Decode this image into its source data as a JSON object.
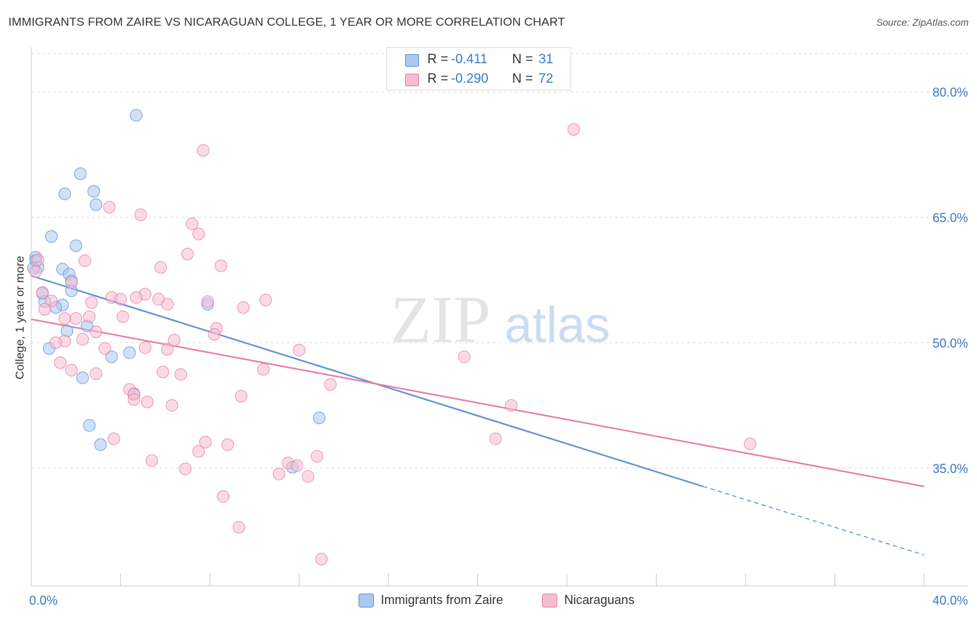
{
  "title": "IMMIGRANTS FROM ZAIRE VS NICARAGUAN COLLEGE, 1 YEAR OR MORE CORRELATION CHART",
  "source": "Source: ZipAtlas.com",
  "watermark": {
    "zip": "ZIP",
    "atlas": "atlas"
  },
  "legend": {
    "rows": [
      {
        "r_label": "R =",
        "r_value": "-0.411",
        "n_label": "N =",
        "n_value": "31",
        "color": "#aac8f0",
        "stroke": "#5b8fd6"
      },
      {
        "r_label": "R =",
        "r_value": "-0.290",
        "n_label": "N =",
        "n_value": "72",
        "color": "#f7bcd0",
        "stroke": "#e47fa1"
      }
    ]
  },
  "bottom_legend": [
    {
      "label": "Immigrants from Zaire",
      "color": "#aac8f0",
      "stroke": "#5b8fd6"
    },
    {
      "label": "Nicaraguans",
      "color": "#f7bcd0",
      "stroke": "#e47fa1"
    }
  ],
  "chart_data": {
    "type": "scatter",
    "title": "IMMIGRANTS FROM ZAIRE VS NICARAGUAN COLLEGE, 1 YEAR OR MORE CORRELATION CHART",
    "xlabel": "",
    "ylabel": "College, 1 year or more",
    "xlim": [
      0,
      40
    ],
    "ylim": [
      20.9,
      85.0
    ],
    "x_tick_labels": [
      "0.0%",
      "40.0%"
    ],
    "y_ticks": [
      35,
      50,
      65,
      80
    ],
    "y_tick_labels": [
      "35.0%",
      "50.0%",
      "65.0%",
      "80.0%"
    ],
    "grid": true,
    "legend_position": "top-center",
    "series": [
      {
        "name": "Immigrants from Zaire",
        "color": "#5b8fd6",
        "fill": "#aac8f0",
        "points": [
          [
            4.7,
            77.2
          ],
          [
            2.2,
            70.2
          ],
          [
            2.8,
            68.1
          ],
          [
            1.5,
            67.8
          ],
          [
            2.9,
            66.5
          ],
          [
            0.9,
            62.7
          ],
          [
            2.0,
            61.6
          ],
          [
            0.2,
            60.2
          ],
          [
            0.2,
            59.8
          ],
          [
            0.3,
            59.0
          ],
          [
            1.4,
            58.8
          ],
          [
            1.7,
            58.2
          ],
          [
            1.8,
            57.4
          ],
          [
            1.8,
            56.2
          ],
          [
            0.5,
            55.9
          ],
          [
            0.6,
            54.9
          ],
          [
            1.4,
            54.5
          ],
          [
            1.1,
            54.2
          ],
          [
            7.9,
            54.6
          ],
          [
            1.6,
            51.4
          ],
          [
            2.5,
            52.0
          ],
          [
            0.8,
            49.3
          ],
          [
            3.6,
            48.3
          ],
          [
            4.4,
            48.8
          ],
          [
            2.3,
            45.8
          ],
          [
            4.6,
            43.9
          ],
          [
            2.6,
            40.1
          ],
          [
            3.1,
            37.8
          ],
          [
            12.9,
            41.0
          ],
          [
            11.7,
            35.1
          ],
          [
            0.1,
            58.9
          ]
        ],
        "trend": {
          "x0": 0,
          "y0": 58.0,
          "x1": 30.1,
          "y1": 32.8,
          "dash_to_x": 40,
          "dash_to_y": 24.6
        }
      },
      {
        "name": "Nicaraguans",
        "color": "#e47fa1",
        "fill": "#f7bcd0",
        "points": [
          [
            24.3,
            75.5
          ],
          [
            7.7,
            73.0
          ],
          [
            3.5,
            66.2
          ],
          [
            4.9,
            65.3
          ],
          [
            7.2,
            64.2
          ],
          [
            7.5,
            63.0
          ],
          [
            7.0,
            60.6
          ],
          [
            2.4,
            59.8
          ],
          [
            8.5,
            59.2
          ],
          [
            5.8,
            59.0
          ],
          [
            0.3,
            59.9
          ],
          [
            0.2,
            58.5
          ],
          [
            1.8,
            57.2
          ],
          [
            3.6,
            55.4
          ],
          [
            5.1,
            55.8
          ],
          [
            4.0,
            55.2
          ],
          [
            4.7,
            55.4
          ],
          [
            5.7,
            55.2
          ],
          [
            6.1,
            54.6
          ],
          [
            2.7,
            54.8
          ],
          [
            7.9,
            54.9
          ],
          [
            9.5,
            54.2
          ],
          [
            10.5,
            55.1
          ],
          [
            0.9,
            55.0
          ],
          [
            0.6,
            54.0
          ],
          [
            2.6,
            53.1
          ],
          [
            1.5,
            52.9
          ],
          [
            4.1,
            53.1
          ],
          [
            8.3,
            51.7
          ],
          [
            2.0,
            52.9
          ],
          [
            8.2,
            51.0
          ],
          [
            2.9,
            51.3
          ],
          [
            1.5,
            50.2
          ],
          [
            2.3,
            50.4
          ],
          [
            6.4,
            50.3
          ],
          [
            1.1,
            50.0
          ],
          [
            3.3,
            49.3
          ],
          [
            5.1,
            49.4
          ],
          [
            6.1,
            49.2
          ],
          [
            12.0,
            49.1
          ],
          [
            1.3,
            47.6
          ],
          [
            1.8,
            46.7
          ],
          [
            2.9,
            46.3
          ],
          [
            5.9,
            46.5
          ],
          [
            6.7,
            46.2
          ],
          [
            10.4,
            46.8
          ],
          [
            19.4,
            48.3
          ],
          [
            13.4,
            45.0
          ],
          [
            4.4,
            44.4
          ],
          [
            4.6,
            43.8
          ],
          [
            4.6,
            43.2
          ],
          [
            5.2,
            42.9
          ],
          [
            6.3,
            42.5
          ],
          [
            9.4,
            43.6
          ],
          [
            21.5,
            42.5
          ],
          [
            3.7,
            38.5
          ],
          [
            7.8,
            38.1
          ],
          [
            8.8,
            37.8
          ],
          [
            7.5,
            37.0
          ],
          [
            20.8,
            38.5
          ],
          [
            32.2,
            37.9
          ],
          [
            5.4,
            35.9
          ],
          [
            6.9,
            34.9
          ],
          [
            11.5,
            35.6
          ],
          [
            11.9,
            35.3
          ],
          [
            12.8,
            36.4
          ],
          [
            11.1,
            34.3
          ],
          [
            12.4,
            34.0
          ],
          [
            8.6,
            31.6
          ],
          [
            9.3,
            27.9
          ],
          [
            13.0,
            24.1
          ],
          [
            0.5,
            56.0
          ]
        ],
        "trend": {
          "x0": 0,
          "y0": 52.8,
          "x1": 40,
          "y1": 32.8
        }
      }
    ]
  }
}
